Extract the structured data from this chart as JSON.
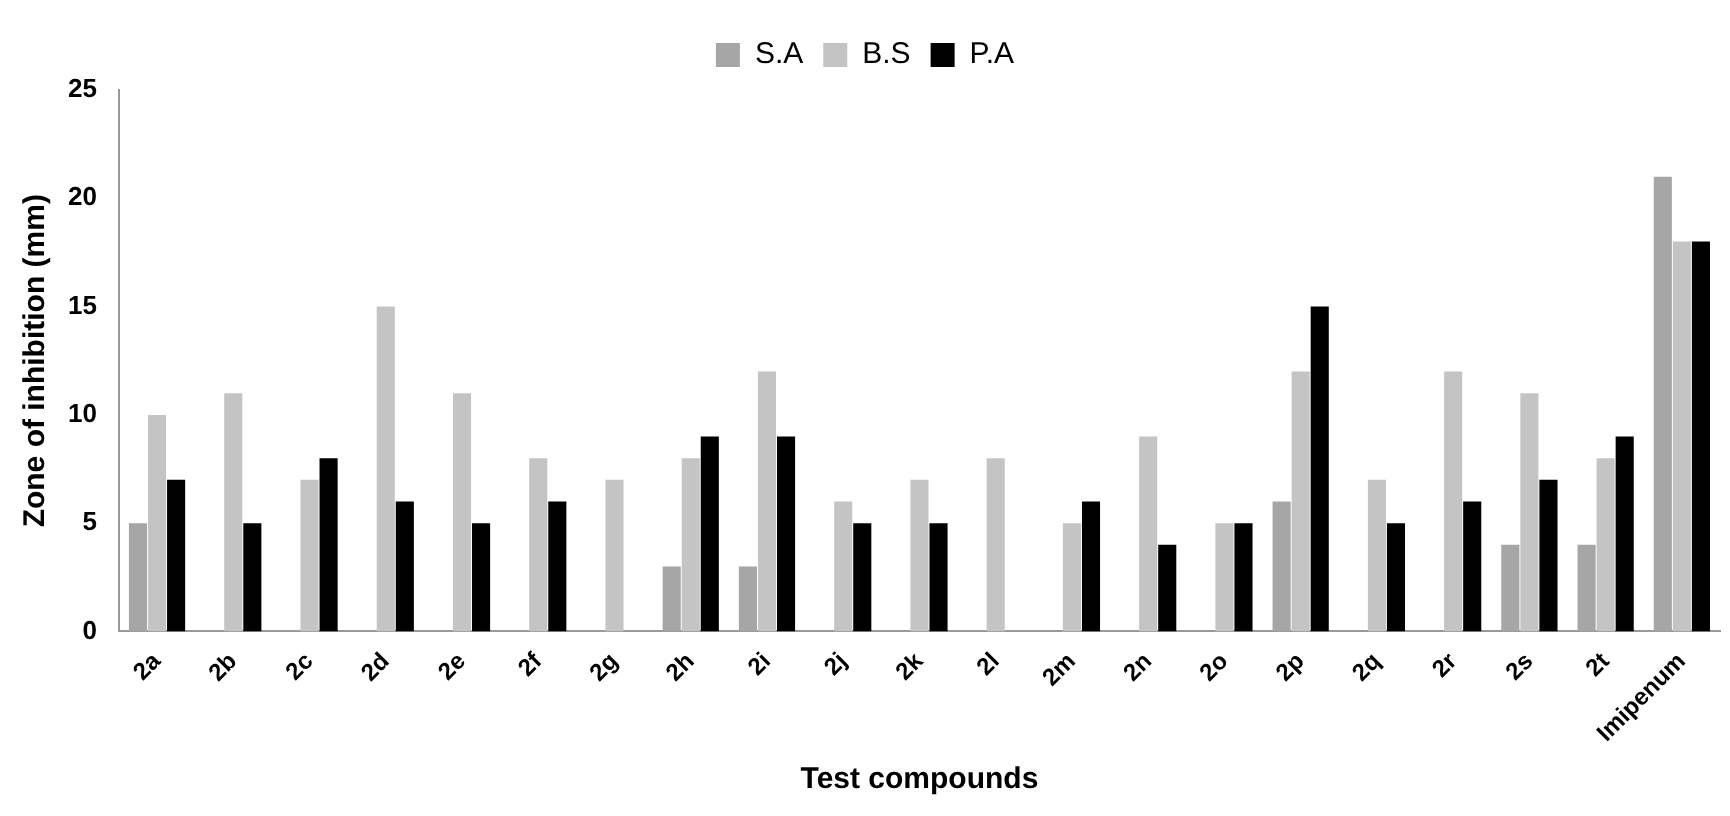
{
  "chart_data": {
    "type": "bar",
    "xlabel": "Test compounds",
    "ylabel": "Zone of inhibition (mm)",
    "categories": [
      "2a",
      "2b",
      "2c",
      "2d",
      "2e",
      "2f",
      "2g",
      "2h",
      "2i",
      "2j",
      "2k",
      "2l",
      "2m",
      "2n",
      "2o",
      "2p",
      "2q",
      "2r",
      "2s",
      "2t",
      "Imipenum"
    ],
    "series": [
      {
        "name": "S.A",
        "color": "#a6a6a6",
        "values": [
          5,
          0,
          0,
          0,
          0,
          0,
          0,
          3,
          3,
          0,
          0,
          0,
          0,
          0,
          0,
          6,
          0,
          0,
          4,
          4,
          21
        ]
      },
      {
        "name": "B.S",
        "color": "#c4c4c4",
        "values": [
          10,
          11,
          7,
          15,
          11,
          8,
          7,
          8,
          12,
          6,
          7,
          8,
          5,
          9,
          5,
          12,
          7,
          12,
          11,
          8,
          18
        ]
      },
      {
        "name": "P.A",
        "color": "#000000",
        "values": [
          7,
          5,
          8,
          6,
          5,
          6,
          0,
          9,
          9,
          5,
          5,
          0,
          6,
          4,
          5,
          15,
          5,
          6,
          7,
          9,
          18
        ]
      }
    ],
    "ylim": [
      0,
      25
    ],
    "yticks": [
      0,
      5,
      10,
      15,
      20,
      25
    ],
    "grid": false,
    "legend": "top"
  }
}
